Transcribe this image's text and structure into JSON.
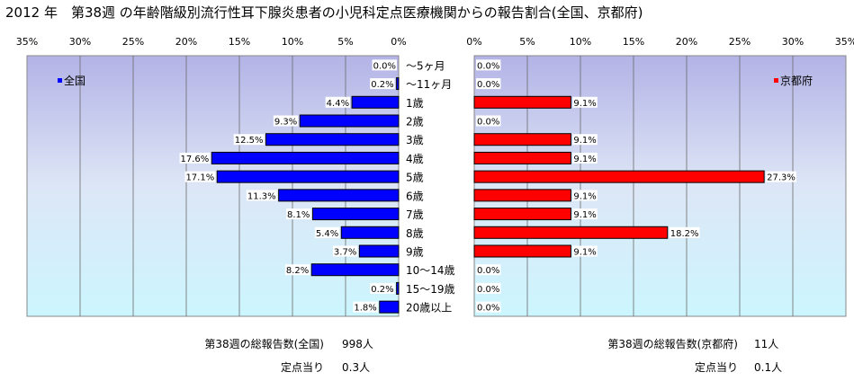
{
  "title": "2012 年　第38週 の年齢階級別流行性耳下腺炎患者の小児科定点医療機関からの報告割合(全国、京都府)",
  "chart_data": [
    {
      "type": "bar",
      "orientation": "horizontal",
      "series": [
        {
          "name": "全国",
          "color": "#0000ff",
          "values": [
            0.0,
            0.2,
            4.4,
            9.3,
            12.5,
            17.6,
            17.1,
            11.3,
            8.1,
            5.4,
            3.7,
            8.2,
            0.2,
            1.8
          ]
        }
      ],
      "value_labels": [
        "0.0%",
        "0.2%",
        "4.4%",
        "9.3%",
        "12.5%",
        "17.6%",
        "17.1%",
        "11.3%",
        "8.1%",
        "5.4%",
        "3.7%",
        "8.2%",
        "0.2%",
        "1.8%"
      ],
      "xlim": [
        0,
        35
      ],
      "x_reversed": true,
      "ticks": [
        "35%",
        "30%",
        "25%",
        "20%",
        "15%",
        "10%",
        "5%",
        "0%"
      ],
      "legend": "top-left",
      "grid": true
    },
    {
      "type": "bar",
      "orientation": "horizontal",
      "series": [
        {
          "name": "京都府",
          "color": "#ff0000",
          "values": [
            0.0,
            0.0,
            9.1,
            0.0,
            9.1,
            9.1,
            27.3,
            9.1,
            9.1,
            18.2,
            9.1,
            0.0,
            0.0,
            0.0
          ]
        }
      ],
      "value_labels": [
        "0.0%",
        "0.0%",
        "9.1%",
        "0.0%",
        "9.1%",
        "9.1%",
        "27.3%",
        "9.1%",
        "9.1%",
        "18.2%",
        "9.1%",
        "0.0%",
        "0.0%",
        "0.0%"
      ],
      "xlim": [
        0,
        35
      ],
      "ticks": [
        "0%",
        "5%",
        "10%",
        "15%",
        "20%",
        "25%",
        "30%",
        "35%"
      ],
      "legend": "top-right",
      "grid": true
    }
  ],
  "categories": [
    "～5ヶ月",
    "～11ヶ月",
    "1歳",
    "2歳",
    "3歳",
    "4歳",
    "5歳",
    "6歳",
    "7歳",
    "8歳",
    "9歳",
    "10～14歳",
    "15～19歳",
    "20歳以上"
  ],
  "footer": {
    "left": {
      "total_label": "第38週の総報告数(全国)",
      "total_value": "998人",
      "per_label": "定点当り",
      "per_value": "0.3人"
    },
    "right": {
      "total_label": "第38週の総報告数(京都府)",
      "total_value": "11人",
      "per_label": "定点当り",
      "per_value": "0.1人"
    }
  }
}
